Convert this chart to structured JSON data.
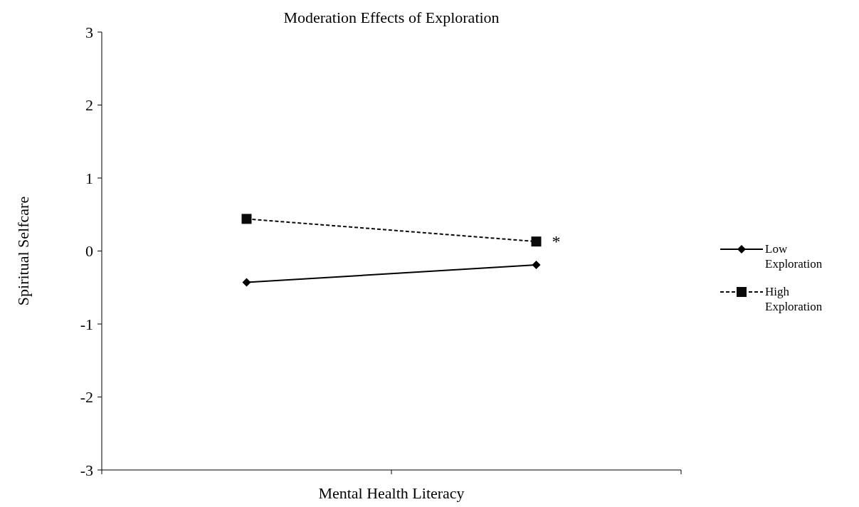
{
  "chart_data": {
    "type": "line",
    "title": "Moderation Effects of Exploration",
    "xlabel": "Mental Health Literacy",
    "ylabel": "Spiritual Selfcare",
    "categories": [
      null,
      null
    ],
    "series": [
      {
        "name": "Low Exploration",
        "color": "#000000",
        "values": [
          -0.43,
          -0.19
        ],
        "marker": "diamond",
        "line_style": "solid"
      },
      {
        "name": "High Exploration",
        "color": "#0a0a0a",
        "values": [
          0.44,
          0.13
        ],
        "marker": "square",
        "line_style": "dashed"
      }
    ],
    "ylim": [
      -3,
      3
    ],
    "yticks": [
      -3,
      -2,
      -1,
      0,
      1,
      2,
      3
    ],
    "grid": false,
    "legend": "right",
    "annotations": [
      "*"
    ]
  }
}
